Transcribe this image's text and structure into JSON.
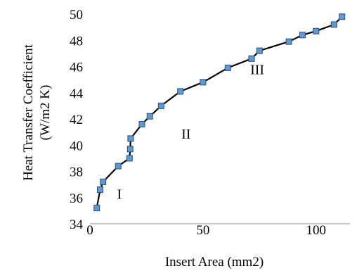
{
  "chart_data": {
    "type": "line",
    "title": "",
    "xlabel": "Insert Area (mm2)",
    "ylabel_lines": [
      "Heat Transfer Coefficient",
      "(W/m2 K)"
    ],
    "xlim": [
      0,
      115
    ],
    "ylim": [
      34,
      50
    ],
    "x_ticks": [
      0,
      50,
      100
    ],
    "y_ticks": [
      34,
      36,
      38,
      40,
      42,
      44,
      46,
      48,
      50
    ],
    "grid": false,
    "legend": "none",
    "series": [
      {
        "marker": "square",
        "color": "#5b9bd5",
        "line_color": "#000000",
        "x": [
          3,
          4.5,
          5.8,
          12.5,
          17.5,
          17.8,
          18,
          23,
          26.5,
          31.5,
          40,
          50,
          61,
          71.5,
          75,
          88,
          94,
          100,
          108,
          111.5
        ],
        "y": [
          35.2,
          36.6,
          37.2,
          38.4,
          39,
          39.7,
          40.5,
          41.6,
          42.2,
          43,
          44.1,
          44.8,
          45.9,
          46.6,
          47.2,
          47.9,
          48.4,
          48.7,
          49.2,
          49.8
        ]
      }
    ],
    "annotations": [
      {
        "text": "I",
        "x": 13,
        "y": 35.9
      },
      {
        "text": "II",
        "x": 42.5,
        "y": 40.5
      },
      {
        "text": "III",
        "x": 74,
        "y": 45.4
      }
    ]
  }
}
